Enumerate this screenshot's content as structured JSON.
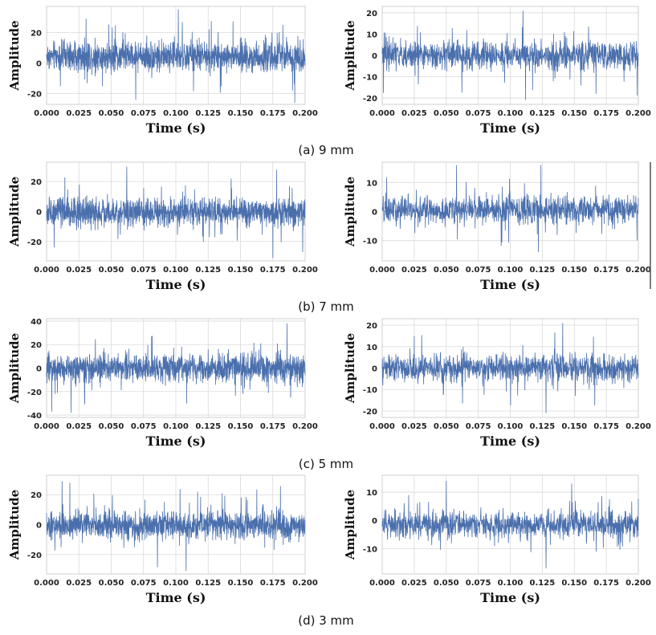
{
  "figure": {
    "captions": [
      "(a) 9 mm",
      "(b) 7 mm",
      "(c) 5 mm",
      "(d) 3 mm"
    ],
    "line_color": "#4a6fad",
    "grid_color": "#d9d9d9"
  },
  "chart_data": [
    {
      "type": "line",
      "group": "(a) 9 mm",
      "position": "left",
      "xlabel": "Time (s)",
      "ylabel": "Amplitude",
      "xlim": [
        0.0,
        0.2
      ],
      "ylim": [
        -27,
        37
      ],
      "xticks": [
        "0.000",
        "0.025",
        "0.050",
        "0.075",
        "0.100",
        "0.125",
        "0.150",
        "0.175",
        "0.200"
      ],
      "yticks": [
        -20,
        0,
        20
      ],
      "series": [
        {
          "name": "signal",
          "samples": 1500,
          "range": [
            -26,
            35
          ],
          "peaks": [
            [
              0.102,
              35
            ],
            [
              0.192,
              -26
            ],
            [
              0.069,
              -24
            ]
          ]
        }
      ]
    },
    {
      "type": "line",
      "group": "(a) 9 mm",
      "position": "right",
      "xlabel": "Time (s)",
      "ylabel": "Amplitude",
      "xlim": [
        0.0,
        0.2
      ],
      "ylim": [
        -23,
        23
      ],
      "xticks": [
        "0.000",
        "0.025",
        "0.050",
        "0.075",
        "0.100",
        "0.125",
        "0.150",
        "0.175",
        "0.200"
      ],
      "yticks": [
        -20,
        -10,
        0,
        10,
        20
      ],
      "series": [
        {
          "name": "signal",
          "samples": 1200,
          "range": [
            -21,
            21
          ],
          "peaks": [
            [
              0.11,
              21
            ],
            [
              0.112,
              -21
            ],
            [
              0.167,
              -18
            ]
          ]
        }
      ]
    },
    {
      "type": "line",
      "group": "(b) 7 mm",
      "position": "left",
      "xlabel": "Time (s)",
      "ylabel": "Amplitude",
      "xlim": [
        0.0,
        0.2
      ],
      "ylim": [
        -33,
        33
      ],
      "xticks": [
        "0.000",
        "0.025",
        "0.050",
        "0.075",
        "0.100",
        "0.125",
        "0.150",
        "0.175",
        "0.200"
      ],
      "yticks": [
        -20,
        0,
        20
      ],
      "series": [
        {
          "name": "signal",
          "samples": 1500,
          "range": [
            -31,
            30
          ],
          "peaks": [
            [
              0.062,
              30
            ],
            [
              0.178,
              28
            ],
            [
              0.175,
              -31
            ]
          ]
        }
      ]
    },
    {
      "type": "line",
      "group": "(b) 7 mm",
      "position": "right",
      "xlabel": "Time (s)",
      "ylabel": "Amplitude",
      "xlim": [
        0.0,
        0.2
      ],
      "ylim": [
        -17,
        17
      ],
      "xticks": [
        "0.000",
        "0.025",
        "0.050",
        "0.075",
        "0.100",
        "0.125",
        "0.150",
        "0.175",
        "0.200"
      ],
      "yticks": [
        -10,
        0,
        10
      ],
      "series": [
        {
          "name": "signal",
          "samples": 1200,
          "range": [
            -15,
            16
          ],
          "peaks": [
            [
              0.058,
              16
            ],
            [
              0.124,
              16
            ],
            [
              0.122,
              -14
            ]
          ]
        }
      ]
    },
    {
      "type": "line",
      "group": "(c) 5 mm",
      "position": "left",
      "xlabel": "Time (s)",
      "ylabel": "Amplitude",
      "xlim": [
        0.0,
        0.2
      ],
      "ylim": [
        -42,
        42
      ],
      "xticks": [
        "0.000",
        "0.025",
        "0.050",
        "0.075",
        "0.100",
        "0.125",
        "0.150",
        "0.175",
        "0.200"
      ],
      "yticks": [
        -40,
        -20,
        0,
        20,
        40
      ],
      "series": [
        {
          "name": "signal",
          "samples": 1500,
          "range": [
            -38,
            38
          ],
          "peaks": [
            [
              0.186,
              38
            ],
            [
              0.004,
              -37
            ],
            [
              0.019,
              -38
            ]
          ]
        }
      ]
    },
    {
      "type": "line",
      "group": "(c) 5 mm",
      "position": "right",
      "xlabel": "Time (s)",
      "ylabel": "Amplitude",
      "xlim": [
        0.0,
        0.2
      ],
      "ylim": [
        -23,
        23
      ],
      "xticks": [
        "0.000",
        "0.025",
        "0.050",
        "0.075",
        "0.100",
        "0.125",
        "0.150",
        "0.175",
        "0.200"
      ],
      "yticks": [
        -20,
        -10,
        0,
        10,
        20
      ],
      "series": [
        {
          "name": "signal",
          "samples": 1200,
          "range": [
            -21,
            21
          ],
          "peaks": [
            [
              0.141,
              21
            ],
            [
              0.128,
              -21
            ],
            [
              0.025,
              15
            ]
          ]
        }
      ]
    },
    {
      "type": "line",
      "group": "(d) 3 mm",
      "position": "left",
      "xlabel": "Time (s)",
      "ylabel": "Amplitude",
      "xlim": [
        0.0,
        0.2
      ],
      "ylim": [
        -33,
        33
      ],
      "xticks": [
        "0.000",
        "0.025",
        "0.050",
        "0.075",
        "0.100",
        "0.125",
        "0.150",
        "0.175",
        "0.200"
      ],
      "yticks": [
        -20,
        0,
        20
      ],
      "series": [
        {
          "name": "signal",
          "samples": 1500,
          "range": [
            -31,
            30
          ],
          "peaks": [
            [
              0.012,
              29
            ],
            [
              0.108,
              -31
            ],
            [
              0.018,
              28
            ]
          ]
        }
      ]
    },
    {
      "type": "line",
      "group": "(d) 3 mm",
      "position": "right",
      "xlabel": "Time (s)",
      "ylabel": "Amplitude",
      "xlim": [
        0.0,
        0.2
      ],
      "ylim": [
        -19,
        16
      ],
      "xticks": [
        "0.000",
        "0.025",
        "0.050",
        "0.075",
        "0.100",
        "0.125",
        "0.150",
        "0.175",
        "0.200"
      ],
      "yticks": [
        -10,
        0,
        10
      ],
      "series": [
        {
          "name": "signal",
          "samples": 1200,
          "range": [
            -17,
            14
          ],
          "peaks": [
            [
              0.05,
              14
            ],
            [
              0.128,
              -17
            ],
            [
              0.148,
              13
            ]
          ]
        }
      ]
    }
  ]
}
